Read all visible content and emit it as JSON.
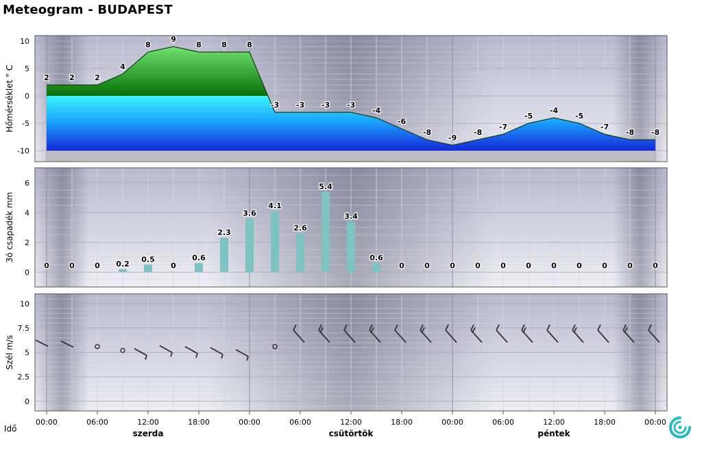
{
  "title": "Meteogram - BUDAPEST",
  "time_axis_label": "Idő",
  "time_ticks": [
    "00:00",
    "06:00",
    "12:00",
    "18:00",
    "00:00",
    "06:00",
    "12:00",
    "18:00",
    "00:00",
    "06:00",
    "12:00",
    "18:00",
    "00:00"
  ],
  "day_labels": [
    "szerda",
    "csütörtök",
    "péntek"
  ],
  "colors": {
    "warm_top": "#5fd35f",
    "warm_bottom": "#0a7a0a",
    "cold_top": "#40f0ff",
    "cold_bottom": "#1530e0",
    "precip_bar": "#7ec3c3",
    "wind_barb": "#333333",
    "night_band": "#8a8a9a"
  },
  "chart_data": [
    {
      "type": "area",
      "name": "temperature",
      "ylabel": "Hőmérséklet ° C",
      "ylim": [
        -12,
        11
      ],
      "yticks": [
        10,
        5,
        0,
        -5,
        -10
      ],
      "x_hours": [
        0,
        3,
        6,
        9,
        12,
        15,
        18,
        21,
        24,
        27,
        30,
        33,
        36,
        39,
        42,
        45,
        48,
        51,
        54,
        57,
        60,
        63,
        66,
        69,
        72
      ],
      "values": [
        2,
        2,
        2,
        4,
        8,
        9,
        8,
        8,
        8,
        -3,
        -3,
        -3,
        -3,
        -4,
        -6,
        -8,
        -9,
        -8,
        -7,
        -5,
        -4,
        -5,
        -7,
        -8,
        -8
      ],
      "labels": [
        "2",
        "2",
        "2",
        "4",
        "8",
        "9",
        "8",
        "8",
        "8",
        "-3",
        "-3",
        "-3",
        "-3",
        "-4",
        "-6",
        "-8",
        "-9",
        "-8",
        "-7",
        "-5",
        "-4",
        "-5",
        "-7",
        "-8",
        "-8"
      ]
    },
    {
      "type": "bar",
      "name": "precipitation",
      "ylabel": "3ó csapadék mm",
      "ylim": [
        -1,
        7
      ],
      "yticks": [
        6,
        4,
        2,
        0
      ],
      "x_hours": [
        0,
        3,
        6,
        9,
        12,
        15,
        18,
        21,
        24,
        27,
        30,
        33,
        36,
        39,
        42,
        45,
        48,
        51,
        54,
        57,
        60,
        63,
        66,
        69,
        72
      ],
      "values": [
        0,
        0,
        0,
        0.2,
        0.5,
        0,
        0.6,
        2.3,
        3.6,
        4.1,
        2.6,
        5.4,
        3.4,
        0.6,
        0,
        0,
        0,
        0,
        0,
        0,
        0,
        0,
        0,
        0,
        0
      ],
      "labels": [
        "0",
        "0",
        "0",
        "0.2",
        "0.5",
        "0",
        "0.6",
        "2.3",
        "3.6",
        "4.1",
        "2.6",
        "5.4",
        "3.4",
        "0.6",
        "0",
        "0",
        "0",
        "0",
        "0",
        "0",
        "0",
        "0",
        "0",
        "0",
        "0"
      ]
    },
    {
      "type": "scatter",
      "name": "wind",
      "ylabel": "Szél m/s",
      "ylim": [
        -1,
        11
      ],
      "yticks": [
        10,
        7.5,
        5,
        2.5,
        0
      ],
      "yticklabels": [
        "10",
        "7.5",
        "5",
        "2.5",
        "0"
      ],
      "x_hours": [
        0,
        3,
        6,
        9,
        12,
        15,
        18,
        21,
        24,
        27,
        30,
        33,
        36,
        39,
        42,
        45,
        48,
        51,
        54,
        57,
        60,
        63,
        66,
        69,
        72
      ],
      "speed": [
        5.7,
        5.6,
        5.6,
        5.2,
        4.9,
        5.2,
        5.1,
        5.0,
        4.8,
        5.6,
        6.3,
        6.3,
        6.3,
        6.3,
        6.3,
        6.3,
        6.3,
        6.3,
        6.3,
        6.3,
        6.3,
        6.3,
        6.3,
        6.3,
        6.3
      ],
      "direction": [
        "NW",
        "W",
        "calm",
        "calm",
        "NW",
        "NW",
        "NW",
        "NW",
        "NW",
        "calm",
        "NE",
        "NE",
        "NE",
        "NE",
        "NE",
        "NE",
        "NE",
        "NE",
        "NE",
        "NE",
        "NE",
        "NE",
        "NE",
        "NE",
        "NE"
      ]
    }
  ]
}
